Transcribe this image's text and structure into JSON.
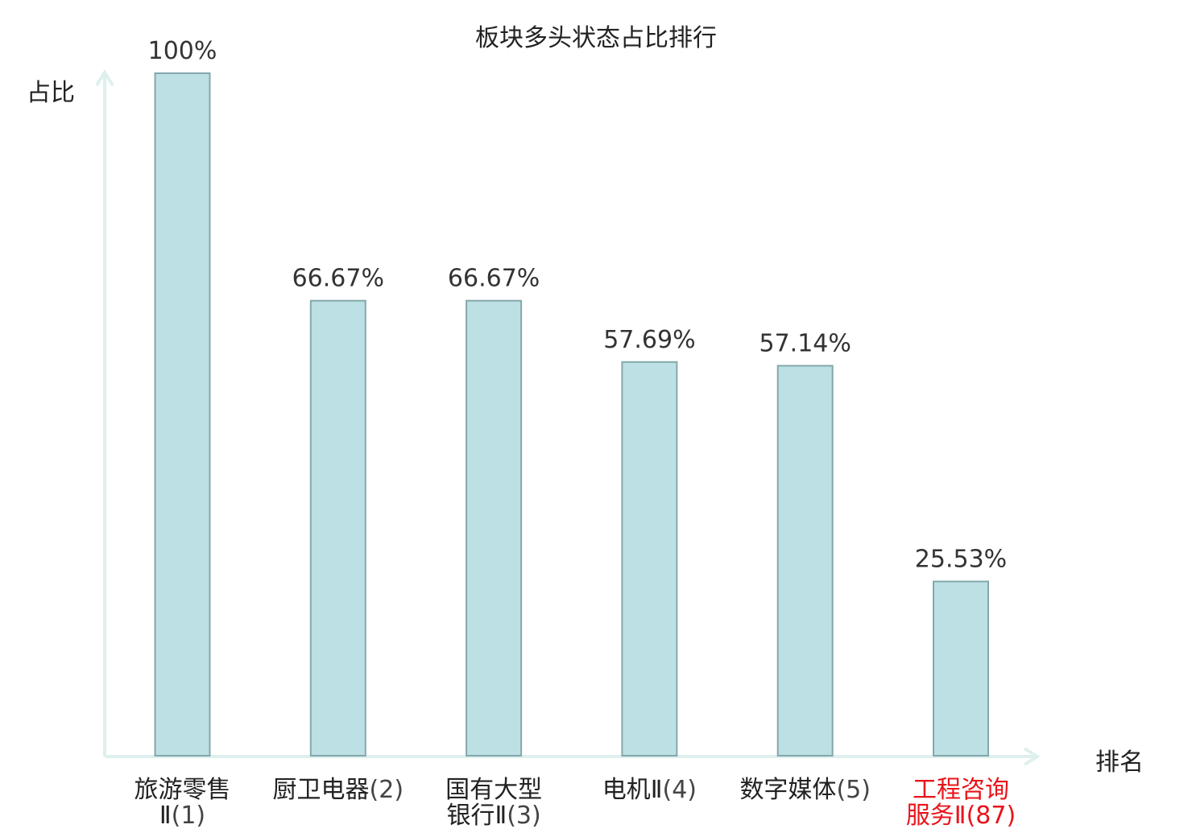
{
  "chart_data": {
    "type": "bar",
    "title": "板块多头状态占比排行",
    "ylabel": "占比",
    "xlabel": "排名",
    "ylim": [
      0,
      100
    ],
    "grid": false,
    "legend": "none",
    "categories": [
      {
        "name": "旅游零售\nⅡ",
        "rank": "(1)",
        "highlight": false
      },
      {
        "name": "厨卫电器",
        "rank": "(2)",
        "highlight": false
      },
      {
        "name": "国有大型\n银行Ⅱ",
        "rank": "(3)",
        "highlight": false
      },
      {
        "name": "电机Ⅱ",
        "rank": "(4)",
        "highlight": false
      },
      {
        "name": "数字媒体",
        "rank": "(5)",
        "highlight": false
      },
      {
        "name": "工程咨询\n服务Ⅱ",
        "rank": "(87)",
        "highlight": true
      }
    ],
    "values": [
      100,
      66.67,
      66.67,
      57.69,
      57.14,
      25.53
    ],
    "value_labels": [
      "100%",
      "66.67%",
      "66.67%",
      "57.69%",
      "57.14%",
      "25.53%"
    ],
    "colors": {
      "bar_fill": "#bce0e3",
      "bar_stroke": "#84a8ab",
      "axis": "#ddf0ee",
      "highlight_text": "#e8141a",
      "label_text": "#333333"
    }
  }
}
